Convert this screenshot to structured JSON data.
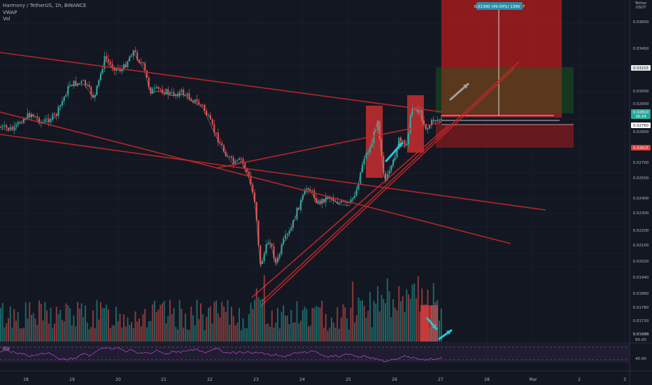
{
  "header": {
    "symbol_line": "Harmony / TetherUS, 1h, BINANCE",
    "vwap_label": "VWAP",
    "vol_label": "Vol"
  },
  "rsi_label": "RSI",
  "currency": {
    "top": "Tether",
    "bottom": "USDT"
  },
  "position": {
    "label": "0.01390 (49.09%) 1390 ·7"
  },
  "price_axis": {
    "ticks": [
      "0.03600",
      "0.03400",
      "0.03000",
      "0.02900",
      "0.02800",
      "0.02700",
      "0.02500",
      "0.02400",
      "0.02300",
      "0.02200",
      "0.02100",
      "0.02020",
      "0.01940",
      "0.01860",
      "0.01780",
      "0.01720",
      "0.01660",
      "0.01605"
    ],
    "markers": [
      {
        "text": "0.03215",
        "bg": "#e8e8e8",
        "fg": "#131722"
      },
      {
        "text": "0.02810",
        "bg": "#26a69a",
        "fg": "#ffffff"
      },
      {
        "text": "36:24",
        "bg": "#26a69a",
        "fg": "#ffffff"
      },
      {
        "text": "0.02760",
        "bg": "#ffffff",
        "fg": "#131722"
      },
      {
        "text": "0.02615",
        "bg": "#e53935",
        "fg": "#ffffff"
      }
    ]
  },
  "rsi_axis": {
    "ticks": [
      "80.00",
      "40.00"
    ]
  },
  "time_axis": {
    "labels": [
      "18",
      "19",
      "20",
      "21",
      "22",
      "23",
      "24",
      "25",
      "26",
      "27",
      "28",
      "Mar",
      "2",
      "3"
    ]
  },
  "colors": {
    "background": "#131722",
    "up": "#26a69a",
    "down": "#ef5350",
    "trendline": "#c62828",
    "stop_zone": "#b71c1c",
    "target_zone": "#1b5e20",
    "rsi": "#ab47bc",
    "grid": "#1f2330"
  },
  "icons": [
    "up-right-arrow-icon",
    "down-right-arrow-icon"
  ]
}
